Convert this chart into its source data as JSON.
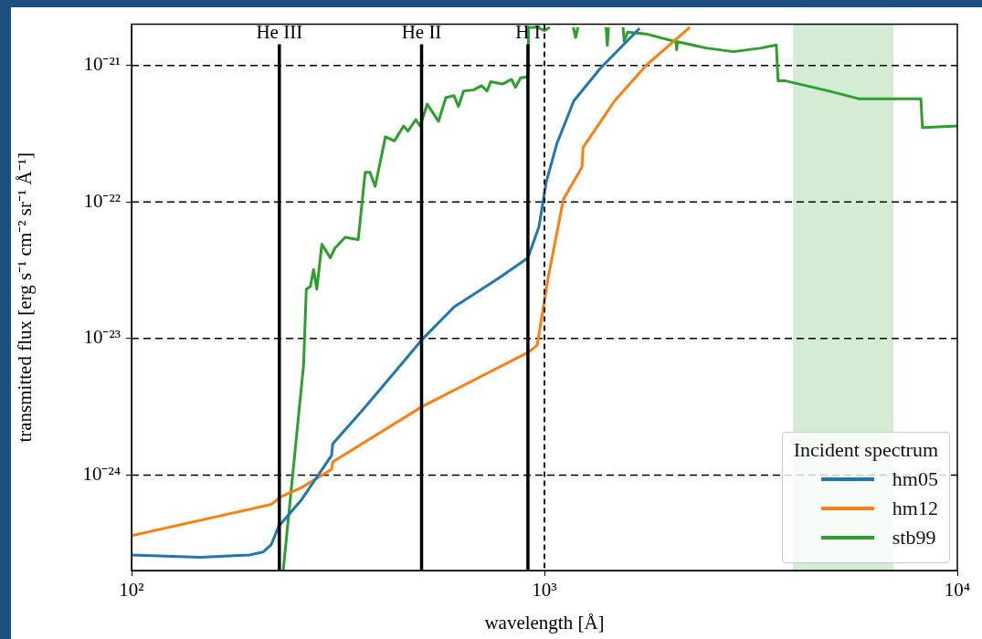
{
  "chart_data": {
    "type": "line",
    "xlabel": "wavelength [Å]",
    "ylabel": "transmitted flux [erg s⁻¹ cm⁻² sr⁻¹ Å⁻¹]",
    "legend_title": "Incident spectrum",
    "legend": "bottom right",
    "log": "xy",
    "grid": "y",
    "marker": "none",
    "line_style": "solid",
    "xlim": [
      100,
      10000
    ],
    "ylim": [
      2e-25,
      2e-21
    ],
    "xticks": [
      {
        "value": 100,
        "label": "10²"
      },
      {
        "value": 1000,
        "label": "10³"
      },
      {
        "value": 10000,
        "label": "10⁴"
      }
    ],
    "yticks": [
      {
        "value": 1e-24,
        "label": "10⁻²⁴"
      },
      {
        "value": 1e-23,
        "label": "10⁻²³"
      },
      {
        "value": 1e-22,
        "label": "10⁻²²"
      },
      {
        "value": 1e-21,
        "label": "10⁻²¹"
      }
    ],
    "series": [
      {
        "name": "hm05",
        "color": "#1f77b4",
        "x": [
          100,
          147,
          193,
          208,
          218,
          227,
          258,
          305,
          307,
          363,
          430,
          508,
          604,
          779,
          912,
          970,
          1010,
          1073,
          1178,
          1365,
          1700
        ],
        "values": [
          2.6e-25,
          2.5e-25,
          2.6e-25,
          2.73e-25,
          3.1e-25,
          4.2e-25,
          6.6e-25,
          1.39e-24,
          1.69e-24,
          3e-24,
          5.5e-24,
          1e-23,
          1.7e-23,
          2.8e-23,
          3.9e-23,
          6.6e-23,
          1.4e-22,
          2.7e-22,
          5.5e-22,
          9.5e-22,
          1.87e-21
        ]
      },
      {
        "name": "hm12",
        "color": "#ff7f0e",
        "x": [
          100,
          218,
          229,
          258,
          305,
          307,
          508,
          912,
          960,
          1021,
          1112,
          1233,
          1240,
          1479,
          1762,
          2250
        ],
        "values": [
          3.6e-25,
          6.1e-25,
          6.9e-25,
          8.1e-25,
          1.1e-24,
          1.25e-24,
          3.2e-24,
          7.9e-24,
          8.9e-24,
          2.8e-23,
          1.05e-22,
          1.8e-22,
          2.5e-22,
          5.5e-22,
          1e-21,
          1.9e-21
        ]
      },
      {
        "name": "stb99",
        "color": "#2ca02c",
        "x": [
          233,
          261,
          265,
          271,
          276,
          281,
          289,
          303,
          311,
          329,
          354,
          368,
          378,
          389,
          412,
          433,
          456,
          467,
          488,
          500,
          520,
          554,
          577,
          604,
          619,
          637,
          673,
          704,
          726,
          741,
          791,
          832,
          851,
          875,
          905,
          912,
          915,
          960,
          1000,
          1030,
          1080,
          1175,
          1190,
          1205,
          1300,
          1410,
          1420,
          1430,
          1500,
          1550,
          1560,
          1590,
          1762,
          2083,
          2090,
          2100,
          2466,
          2871,
          3345,
          3644,
          3680,
          3840,
          4875,
          5770,
          8160,
          8230,
          10000
        ],
        "values": [
          2e-25,
          6.4e-24,
          2.3e-23,
          2.4e-23,
          3.2e-23,
          2.3e-23,
          4.9e-23,
          3.9e-23,
          4.6e-23,
          5.5e-23,
          5.3e-23,
          1.65e-22,
          1.65e-22,
          1.3e-22,
          3e-22,
          2.8e-22,
          3.6e-22,
          3.3e-22,
          4e-22,
          3.6e-22,
          5.2e-22,
          3.9e-22,
          5.8e-22,
          6e-22,
          5e-22,
          6.5e-22,
          6.6e-22,
          7.1e-22,
          6.5e-22,
          7.6e-22,
          7.3e-22,
          7.9e-22,
          6.9e-22,
          8.1e-22,
          8.2e-22,
          8.2e-22,
          1.9e-21,
          1.9e-21,
          1.8e-21,
          1.9e-21,
          null,
          1.9e-21,
          1.6e-21,
          1.9e-21,
          null,
          1.9e-21,
          1.4e-21,
          1.9e-21,
          null,
          1.9e-21,
          1.5e-21,
          1.75e-21,
          1.7e-21,
          1.49e-21,
          1.3e-21,
          1.49e-21,
          1.34e-21,
          1.26e-21,
          1.34e-21,
          1.41e-21,
          7.7e-22,
          7.7e-22,
          6.5e-22,
          5.7e-22,
          5.7e-22,
          3.5e-22,
          3.6e-22
        ]
      }
    ],
    "ref_lines": [
      {
        "axis": "x",
        "value": 228,
        "label": "He III",
        "color": "#000000"
      },
      {
        "axis": "x",
        "value": 504,
        "label": "He II",
        "color": "#000000"
      },
      {
        "axis": "x",
        "value": 912,
        "label": "H I",
        "color": "#000000"
      },
      {
        "axis": "x",
        "value": 1000,
        "color": "#000000",
        "line_style": "dashed"
      }
    ],
    "bands": [
      {
        "axis": "x",
        "from": 4000,
        "to": 7000,
        "color": "#d4ecd4"
      }
    ]
  }
}
